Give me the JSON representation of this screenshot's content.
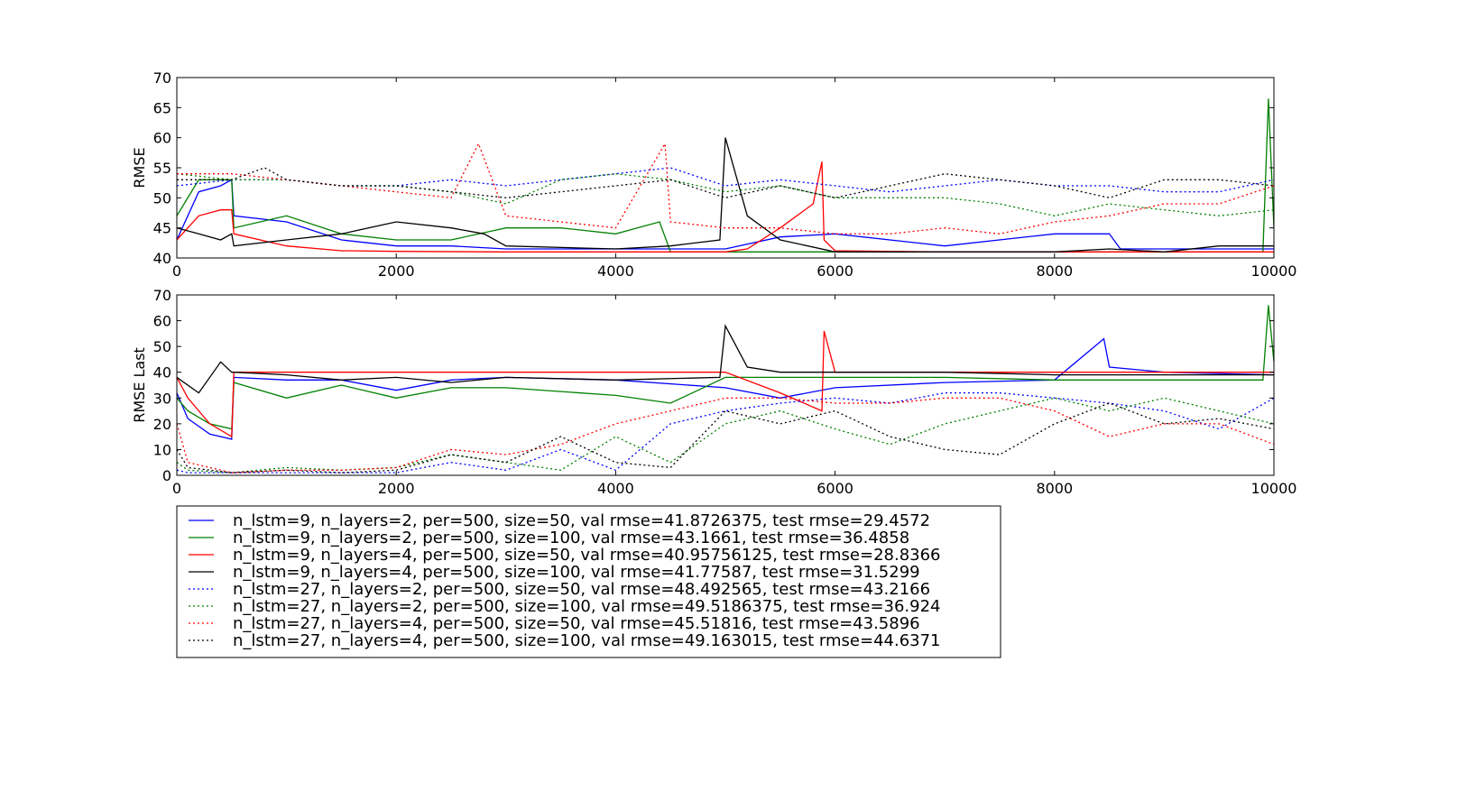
{
  "chart_data": [
    {
      "type": "line",
      "title": "",
      "xlabel": "",
      "ylabel": "RMSE",
      "xlim": [
        0,
        10000
      ],
      "ylim": [
        40,
        70
      ],
      "xticks": [
        "0",
        "2000",
        "4000",
        "6000",
        "8000",
        "10000"
      ],
      "yticks": [
        "40",
        "45",
        "50",
        "55",
        "60",
        "65",
        "70"
      ],
      "grid": false,
      "series": [
        {
          "name": "n_lstm=9, n_layers=2, per=500, size=50, val rmse=41.8726375, test rmse=29.4572",
          "color": "#0000ff",
          "dash": "solid",
          "x": [
            0,
            200,
            400,
            500,
            520,
            1000,
            1500,
            2000,
            2500,
            3000,
            4000,
            5000,
            5500,
            6000,
            7000,
            8000,
            8500,
            8600,
            9000,
            10000
          ],
          "y": [
            43,
            51,
            52,
            53,
            47,
            46,
            43,
            42,
            42,
            41.5,
            41.5,
            41.5,
            43.5,
            44,
            42,
            44,
            44,
            41.5,
            41.5,
            41.5
          ]
        },
        {
          "name": "n_lstm=9, n_layers=2, per=500, size=100, val rmse=43.1661, test rmse=36.4858",
          "color": "#008000",
          "dash": "solid",
          "x": [
            0,
            200,
            500,
            520,
            1000,
            1500,
            2000,
            2500,
            3000,
            3500,
            4000,
            4400,
            4500,
            5000,
            6000,
            7000,
            8000,
            9000,
            9900,
            9950,
            10000
          ],
          "y": [
            47,
            53,
            53,
            45,
            47,
            44,
            43,
            43,
            45,
            45,
            44,
            46,
            41,
            41,
            41,
            41,
            41,
            41,
            41,
            66.5,
            45
          ]
        },
        {
          "name": "n_lstm=9, n_layers=4, per=500, size=50, val rmse=40.95756125, test rmse=28.8366",
          "color": "#ff0000",
          "dash": "solid",
          "x": [
            0,
            200,
            400,
            500,
            520,
            1000,
            1500,
            2000,
            3000,
            4000,
            5000,
            5200,
            5500,
            5800,
            5880,
            5900,
            6000,
            7000,
            8000,
            9000,
            10000
          ],
          "y": [
            43,
            47,
            48,
            48,
            44,
            42,
            41.2,
            41.1,
            41,
            41,
            41,
            41.5,
            45,
            49,
            56,
            43,
            41.2,
            41,
            41,
            41,
            41
          ]
        },
        {
          "name": "n_lstm=9, n_layers=4, per=500, size=100, val rmse=41.77587, test rmse=31.5299",
          "color": "#000000",
          "dash": "solid",
          "x": [
            0,
            200,
            400,
            500,
            520,
            1000,
            1500,
            2000,
            2500,
            2800,
            3000,
            4000,
            4500,
            4950,
            5000,
            5200,
            5500,
            6000,
            7000,
            7500,
            8000,
            8500,
            9000,
            9500,
            10000
          ],
          "y": [
            45,
            44,
            43,
            44,
            42,
            43,
            44,
            46,
            45,
            44,
            42,
            41.5,
            42,
            43,
            60,
            47,
            43,
            41,
            41,
            41,
            41,
            41.5,
            41,
            42,
            42
          ]
        },
        {
          "name": "n_lstm=27, n_layers=2, per=500, size=50, val rmse=48.492565, test rmse=43.2166",
          "color": "#0000ff",
          "dash": "dotted",
          "x": [
            0,
            500,
            1000,
            1500,
            2000,
            2500,
            3000,
            3500,
            4000,
            4500,
            5000,
            5500,
            6000,
            6500,
            7000,
            7500,
            8000,
            8500,
            9000,
            9500,
            10000
          ],
          "y": [
            52,
            53,
            53,
            52,
            52,
            53,
            52,
            53,
            54,
            55,
            52,
            53,
            52,
            51,
            52,
            53,
            52,
            52,
            51,
            51,
            53
          ]
        },
        {
          "name": "n_lstm=27, n_layers=2, per=500, size=100, val rmse=49.5186375, test rmse=36.924",
          "color": "#008000",
          "dash": "dotted",
          "x": [
            0,
            500,
            1000,
            1500,
            2000,
            2500,
            3000,
            3500,
            4000,
            4500,
            5000,
            5500,
            6000,
            6500,
            7000,
            7500,
            8000,
            8500,
            9000,
            9500,
            10000
          ],
          "y": [
            54,
            53,
            53,
            52,
            52,
            51,
            49,
            53,
            54,
            53,
            51,
            52,
            50,
            50,
            50,
            49,
            47,
            49,
            48,
            47,
            48
          ]
        },
        {
          "name": "n_lstm=27, n_layers=4, per=500, size=50, val rmse=45.51816, test rmse=43.5896",
          "color": "#ff0000",
          "dash": "dotted",
          "x": [
            0,
            500,
            1000,
            1500,
            2000,
            2500,
            2750,
            3000,
            3500,
            4000,
            4450,
            4500,
            5000,
            5500,
            6000,
            6500,
            7000,
            7500,
            8000,
            8500,
            9000,
            9500,
            10000
          ],
          "y": [
            54,
            54,
            53,
            52,
            51,
            50,
            59,
            47,
            46,
            45,
            59,
            46,
            45,
            45,
            44,
            44,
            45,
            44,
            46,
            47,
            49,
            49,
            52
          ]
        },
        {
          "name": "n_lstm=27, n_layers=4, per=500, size=100, val rmse=49.163015, test rmse=44.6371",
          "color": "#000000",
          "dash": "dotted",
          "x": [
            0,
            500,
            800,
            1000,
            1500,
            2000,
            2500,
            3000,
            3500,
            4000,
            4500,
            5000,
            5500,
            6000,
            6500,
            7000,
            7500,
            8000,
            8500,
            9000,
            9500,
            10000
          ],
          "y": [
            53,
            53,
            55,
            53,
            52,
            52,
            51,
            50,
            51,
            52,
            53,
            50,
            52,
            50,
            52,
            54,
            53,
            52,
            50,
            53,
            53,
            52
          ]
        }
      ]
    },
    {
      "type": "line",
      "title": "",
      "xlabel": "",
      "ylabel": "RMSE Last",
      "xlim": [
        0,
        10000
      ],
      "ylim": [
        0,
        70
      ],
      "xticks": [
        "0",
        "2000",
        "4000",
        "6000",
        "8000",
        "10000"
      ],
      "yticks": [
        "0",
        "10",
        "20",
        "30",
        "40",
        "50",
        "60",
        "70"
      ],
      "grid": false,
      "series": [
        {
          "name": "n_lstm=9, n_layers=2, per=500, size=50, val rmse=41.8726375, test rmse=29.4572",
          "color": "#0000ff",
          "dash": "solid",
          "x": [
            0,
            100,
            300,
            500,
            520,
            1000,
            1500,
            2000,
            2500,
            3000,
            4000,
            5000,
            5500,
            6000,
            7000,
            8000,
            8450,
            8500,
            9000,
            10000
          ],
          "y": [
            32,
            22,
            16,
            14,
            38,
            37,
            37,
            33,
            37,
            38,
            37,
            34,
            30,
            34,
            36,
            37,
            53,
            42,
            40,
            39
          ]
        },
        {
          "name": "n_lstm=9, n_layers=2, per=500, size=100, val rmse=43.1661, test rmse=36.4858",
          "color": "#008000",
          "dash": "solid",
          "x": [
            0,
            100,
            300,
            500,
            520,
            1000,
            1500,
            2000,
            2500,
            3000,
            4000,
            4500,
            5000,
            6000,
            7000,
            8000,
            9000,
            9900,
            9950,
            10000
          ],
          "y": [
            30,
            25,
            20,
            18,
            36,
            30,
            35,
            30,
            34,
            34,
            31,
            28,
            38,
            38,
            38,
            37,
            37,
            37,
            66,
            44
          ]
        },
        {
          "name": "n_lstm=9, n_layers=4, per=500, size=50, val rmse=40.95756125, test rmse=28.8366",
          "color": "#ff0000",
          "dash": "solid",
          "x": [
            0,
            100,
            300,
            500,
            520,
            1000,
            1500,
            2000,
            3000,
            4000,
            5000,
            5500,
            5880,
            5900,
            6000,
            7000,
            8000,
            9000,
            10000
          ],
          "y": [
            38,
            30,
            20,
            15,
            40,
            40,
            40,
            40,
            40,
            40,
            40,
            32,
            25,
            56,
            40,
            40,
            40,
            40,
            40
          ]
        },
        {
          "name": "n_lstm=9, n_layers=4, per=500, size=100, val rmse=41.77587, test rmse=31.5299",
          "color": "#000000",
          "dash": "solid",
          "x": [
            0,
            200,
            400,
            500,
            520,
            1000,
            1500,
            2000,
            2500,
            3000,
            4000,
            4950,
            5000,
            5200,
            5500,
            6000,
            7000,
            8000,
            9000,
            10000
          ],
          "y": [
            38,
            32,
            44,
            40,
            40,
            39,
            37,
            38,
            36,
            38,
            37,
            38,
            58,
            42,
            40,
            40,
            40,
            39,
            39,
            39
          ]
        },
        {
          "name": "n_lstm=27, n_layers=2, per=500, size=50, val rmse=48.492565, test rmse=43.2166",
          "color": "#0000ff",
          "dash": "dotted",
          "x": [
            0,
            100,
            500,
            1000,
            1500,
            2000,
            2500,
            3000,
            3500,
            4000,
            4500,
            5000,
            5500,
            6000,
            6500,
            7000,
            7500,
            8000,
            8500,
            9000,
            9500,
            10000
          ],
          "y": [
            2,
            1,
            1,
            1,
            1,
            1,
            5,
            2,
            10,
            2,
            20,
            25,
            28,
            30,
            28,
            32,
            32,
            30,
            28,
            25,
            18,
            30
          ]
        },
        {
          "name": "n_lstm=27, n_layers=2, per=500, size=100, val rmse=49.5186375, test rmse=36.924",
          "color": "#008000",
          "dash": "dotted",
          "x": [
            0,
            100,
            500,
            1000,
            1500,
            2000,
            2500,
            3000,
            3500,
            4000,
            4500,
            5000,
            5500,
            6000,
            6500,
            7000,
            7500,
            8000,
            8500,
            9000,
            9500,
            10000
          ],
          "y": [
            5,
            2,
            1,
            3,
            2,
            3,
            8,
            5,
            2,
            15,
            5,
            20,
            25,
            18,
            12,
            20,
            25,
            30,
            25,
            30,
            25,
            20
          ]
        },
        {
          "name": "n_lstm=27, n_layers=4, per=500, size=50, val rmse=45.51816, test rmse=43.5896",
          "color": "#ff0000",
          "dash": "dotted",
          "x": [
            0,
            100,
            500,
            1000,
            1500,
            2000,
            2500,
            3000,
            3500,
            4000,
            4500,
            5000,
            5500,
            6000,
            6500,
            7000,
            7500,
            8000,
            8500,
            9000,
            9500,
            10000
          ],
          "y": [
            20,
            5,
            1,
            2,
            2,
            3,
            10,
            8,
            12,
            20,
            25,
            30,
            30,
            28,
            28,
            30,
            30,
            25,
            15,
            20,
            20,
            12
          ]
        },
        {
          "name": "n_lstm=27, n_layers=4, per=500, size=100, val rmse=49.163015, test rmse=44.6371",
          "color": "#000000",
          "dash": "dotted",
          "x": [
            0,
            100,
            500,
            1000,
            1500,
            2000,
            2500,
            3000,
            3500,
            4000,
            4500,
            5000,
            5500,
            6000,
            6500,
            7000,
            7500,
            8000,
            8500,
            9000,
            9500,
            10000
          ],
          "y": [
            10,
            3,
            1,
            2,
            1,
            2,
            8,
            5,
            15,
            5,
            3,
            25,
            20,
            25,
            15,
            10,
            8,
            20,
            28,
            20,
            22,
            18
          ]
        }
      ]
    }
  ]
}
